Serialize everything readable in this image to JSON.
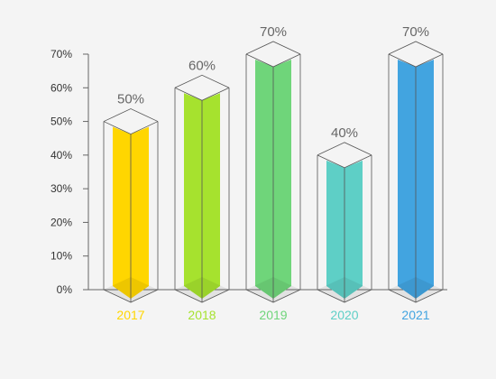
{
  "chart_data": {
    "type": "bar",
    "categories": [
      "2017",
      "2018",
      "2019",
      "2020",
      "2021"
    ],
    "values": [
      50,
      60,
      70,
      40,
      70
    ],
    "value_labels": [
      "50%",
      "60%",
      "70%",
      "40%",
      "70%"
    ],
    "colors": [
      "#ffd600",
      "#a6e22e",
      "#6fd57a",
      "#5ecfc6",
      "#42a4e0"
    ],
    "yticks": [
      "0%",
      "10%",
      "20%",
      "30%",
      "40%",
      "50%",
      "60%",
      "70%"
    ],
    "ylim": [
      0,
      70
    ],
    "grid": false,
    "legend": "none"
  }
}
